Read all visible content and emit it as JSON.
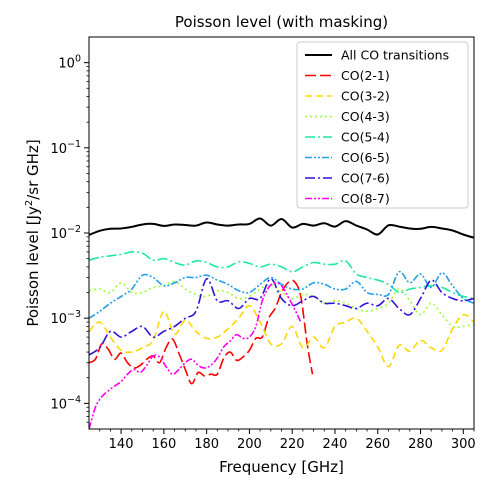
{
  "chart_data": {
    "type": "line",
    "title": "Poisson level (with masking)",
    "xlabel": "Frequency [GHz]",
    "ylabel_prefix": "Poisson level [Jy",
    "ylabel_sup": "2",
    "ylabel_suffix": "/sr GHz]",
    "yscale": "log",
    "xlim": [
      125,
      305
    ],
    "ylim": [
      5e-05,
      2
    ],
    "grid": false,
    "legend_position": "top-right",
    "x_ticks": [
      140,
      160,
      180,
      200,
      220,
      240,
      260,
      280,
      300
    ],
    "y_ticks": [
      {
        "value": 0.0001,
        "base": "10",
        "exp": "−4"
      },
      {
        "value": 0.001,
        "base": "10",
        "exp": "−3"
      },
      {
        "value": 0.01,
        "base": "10",
        "exp": "−2"
      },
      {
        "value": 0.1,
        "base": "10",
        "exp": "−1"
      },
      {
        "value": 1,
        "base": "10",
        "exp": "0"
      }
    ],
    "series": [
      {
        "name": "All CO transitions",
        "color": "#000000",
        "dash": "solid",
        "x": [
          125,
          130,
          135,
          140,
          145,
          150,
          155,
          160,
          165,
          170,
          175,
          180,
          185,
          190,
          195,
          200,
          205,
          210,
          215,
          220,
          225,
          230,
          235,
          240,
          245,
          250,
          255,
          260,
          265,
          270,
          275,
          280,
          285,
          290,
          295,
          300,
          305
        ],
        "y": [
          0.0095,
          0.0106,
          0.0112,
          0.0113,
          0.0118,
          0.0126,
          0.0128,
          0.0121,
          0.0126,
          0.0124,
          0.0122,
          0.0133,
          0.0126,
          0.0122,
          0.0126,
          0.0128,
          0.0148,
          0.0122,
          0.0146,
          0.0116,
          0.0128,
          0.0122,
          0.013,
          0.0119,
          0.0138,
          0.0122,
          0.011,
          0.0096,
          0.0123,
          0.0119,
          0.0113,
          0.0112,
          0.0118,
          0.0113,
          0.0107,
          0.0096,
          0.0088
        ]
      },
      {
        "name": "CO(2-1)",
        "color": "#ff0000",
        "dash": "longdash",
        "x": [
          125,
          128,
          131,
          134,
          137,
          140,
          143,
          146,
          149,
          152,
          155,
          158,
          161,
          164,
          167,
          170,
          173,
          176,
          179,
          182,
          185,
          188,
          191,
          194,
          197,
          200,
          203,
          206,
          209,
          212,
          215,
          218,
          221,
          224,
          227,
          229.5
        ],
        "y": [
          0.0003,
          0.00033,
          0.0005,
          0.00043,
          0.00033,
          0.00039,
          0.0003,
          0.00026,
          0.00028,
          0.00033,
          0.00036,
          0.0003,
          0.00045,
          0.00057,
          0.00039,
          0.00025,
          0.00017,
          0.00023,
          0.00021,
          0.00022,
          0.00022,
          0.00034,
          0.0004,
          0.00032,
          0.00035,
          0.00042,
          0.00058,
          0.0006,
          0.001,
          0.0013,
          0.002,
          0.0026,
          0.0027,
          0.0018,
          0.0005,
          0.00022
        ]
      },
      {
        "name": "CO(3-2)",
        "color": "#ffd700",
        "dash": "dash",
        "x": [
          125,
          130,
          135,
          140,
          145,
          150,
          155,
          160,
          165,
          170,
          175,
          180,
          185,
          190,
          195,
          200,
          205,
          210,
          215,
          220,
          225,
          230,
          235,
          240,
          245,
          250,
          255,
          260,
          265,
          270,
          275,
          280,
          285,
          290,
          295,
          300,
          305
        ],
        "y": [
          0.0007,
          0.0009,
          0.0006,
          0.00042,
          0.0004,
          0.00045,
          0.00055,
          0.0012,
          0.00065,
          0.00095,
          0.0007,
          0.00058,
          0.0006,
          0.00075,
          0.001,
          0.0014,
          0.0009,
          0.0005,
          0.0005,
          0.0008,
          0.00045,
          0.0006,
          0.00045,
          0.0008,
          0.0009,
          0.001,
          0.0007,
          0.00046,
          0.00027,
          0.00048,
          0.00041,
          0.00055,
          0.00045,
          0.00042,
          0.00075,
          0.0011,
          0.0009
        ]
      },
      {
        "name": "CO(4-3)",
        "color": "#99ff33",
        "dash": "dot",
        "x": [
          125,
          130,
          135,
          140,
          145,
          150,
          155,
          160,
          165,
          170,
          175,
          180,
          185,
          190,
          195,
          200,
          205,
          210,
          215,
          220,
          225,
          230,
          235,
          240,
          245,
          250,
          255,
          260,
          265,
          270,
          275,
          280,
          285,
          290,
          295,
          300,
          305
        ],
        "y": [
          0.0021,
          0.0022,
          0.002,
          0.0026,
          0.002,
          0.002,
          0.0023,
          0.0024,
          0.0027,
          0.0022,
          0.0019,
          0.0018,
          0.0021,
          0.002,
          0.0017,
          0.0018,
          0.0022,
          0.0025,
          0.002,
          0.0017,
          0.0019,
          0.0018,
          0.0015,
          0.0016,
          0.0015,
          0.0013,
          0.0012,
          0.0013,
          0.0015,
          0.0022,
          0.0016,
          0.0011,
          0.0015,
          0.0011,
          0.0008,
          0.0008,
          0.00085
        ]
      },
      {
        "name": "CO(5-4)",
        "color": "#1de9a0",
        "dash": "dashdot",
        "x": [
          125,
          130,
          135,
          140,
          145,
          150,
          155,
          160,
          165,
          170,
          175,
          180,
          185,
          190,
          195,
          200,
          205,
          210,
          215,
          220,
          225,
          230,
          235,
          240,
          245,
          250,
          255,
          260,
          265,
          270,
          275,
          280,
          285,
          290,
          295,
          300,
          305
        ],
        "y": [
          0.0048,
          0.0052,
          0.0054,
          0.0056,
          0.006,
          0.0058,
          0.0048,
          0.005,
          0.0045,
          0.0042,
          0.0047,
          0.0045,
          0.004,
          0.004,
          0.0046,
          0.0044,
          0.004,
          0.0043,
          0.004,
          0.0035,
          0.004,
          0.0045,
          0.0043,
          0.0043,
          0.0047,
          0.0033,
          0.003,
          0.0028,
          0.0025,
          0.002,
          0.0022,
          0.0023,
          0.0024,
          0.0023,
          0.002,
          0.0018,
          0.0017
        ]
      },
      {
        "name": "CO(6-5)",
        "color": "#22a0e8",
        "dash": "dashdotdot",
        "x": [
          125,
          130,
          135,
          140,
          145,
          150,
          155,
          160,
          165,
          170,
          175,
          180,
          185,
          190,
          195,
          200,
          205,
          210,
          215,
          220,
          225,
          230,
          235,
          240,
          245,
          250,
          255,
          260,
          265,
          270,
          275,
          280,
          285,
          290,
          295,
          300,
          305
        ],
        "y": [
          0.001,
          0.0012,
          0.0015,
          0.0018,
          0.0022,
          0.0032,
          0.003,
          0.0024,
          0.0026,
          0.003,
          0.003,
          0.0032,
          0.0028,
          0.0025,
          0.0021,
          0.002,
          0.0025,
          0.003,
          0.0025,
          0.0022,
          0.0022,
          0.0026,
          0.0025,
          0.0022,
          0.0022,
          0.0027,
          0.002,
          0.0019,
          0.0019,
          0.0035,
          0.0026,
          0.0033,
          0.0023,
          0.0034,
          0.0024,
          0.0017,
          0.0015
        ]
      },
      {
        "name": "CO(7-6)",
        "color": "#3311dd",
        "dash": "dashdot",
        "x": [
          125,
          130,
          135,
          140,
          145,
          150,
          155,
          160,
          165,
          170,
          175,
          180,
          185,
          190,
          195,
          200,
          205,
          210,
          215,
          220,
          225,
          230,
          235,
          240,
          245,
          250,
          255,
          260,
          265,
          270,
          275,
          280,
          285,
          290,
          295,
          300,
          305
        ],
        "y": [
          0.00037,
          0.00045,
          0.0007,
          0.0006,
          0.0007,
          0.0008,
          0.0006,
          0.0007,
          0.0008,
          0.001,
          0.0012,
          0.0029,
          0.0016,
          0.0016,
          0.0013,
          0.0017,
          0.0017,
          0.0029,
          0.0017,
          0.0014,
          0.0016,
          0.0018,
          0.0015,
          0.0015,
          0.0014,
          0.0013,
          0.0015,
          0.0014,
          0.0017,
          0.0013,
          0.0011,
          0.0017,
          0.0028,
          0.002,
          0.0017,
          0.0016,
          0.0017
        ]
      },
      {
        "name": "CO(8-7)",
        "color": "#ff00ee",
        "dash": "dashdotdot",
        "x": [
          125,
          128,
          131,
          134,
          137,
          140,
          143,
          146,
          149,
          152,
          155,
          158,
          161,
          164,
          167,
          170,
          173,
          176,
          179,
          182,
          185,
          188,
          191,
          194,
          197,
          200,
          203,
          206,
          209,
          212,
          215,
          218,
          221,
          224
        ],
        "y": [
          5e-05,
          9e-05,
          0.00012,
          0.00014,
          0.00016,
          0.00018,
          0.00022,
          0.00025,
          0.00023,
          0.00028,
          0.00036,
          0.00035,
          0.00027,
          0.00022,
          0.00025,
          0.0003,
          0.00033,
          0.00028,
          0.00026,
          0.00028,
          0.00034,
          0.00046,
          0.00054,
          0.00064,
          0.00058,
          0.0006,
          0.0008,
          0.0016,
          0.0023,
          0.0026,
          0.0024,
          0.0018,
          0.0013,
          0.0009
        ]
      }
    ]
  }
}
